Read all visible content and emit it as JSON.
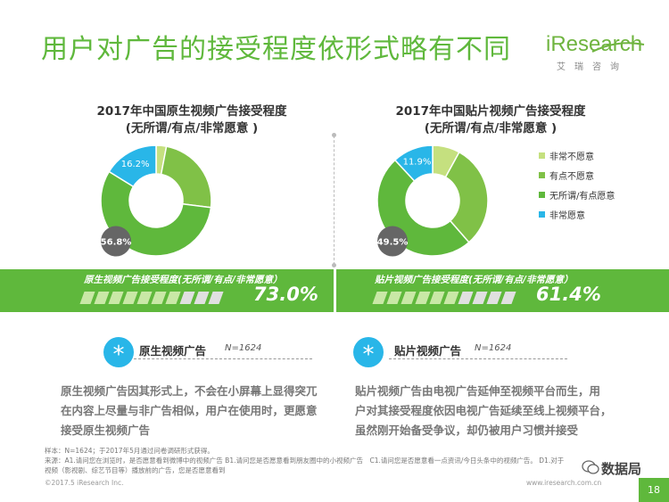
{
  "page": {
    "title": "用户对广告的接受程度依形式略有不同",
    "logo_text": "iResearch",
    "logo_sub": "艾瑞咨询",
    "page_number": "18"
  },
  "colors": {
    "accent_green": "#5fb83c",
    "star_blue": "#29b6e8"
  },
  "chart_data": [
    {
      "type": "pie",
      "donut": true,
      "title": "2017年中国原生视频广告接受程度",
      "subtitle": "(无所谓/有点/非常愿意 )",
      "categories": [
        "非常不愿意",
        "有点不愿意",
        "无所谓/有点愿意",
        "非常愿意"
      ],
      "values": [
        3.0,
        24.0,
        56.8,
        16.2
      ],
      "colors": [
        "#c5e07f",
        "#80c147",
        "#5fb83c",
        "#29b6e8"
      ],
      "data_labels": [
        "",
        "",
        "56.8%",
        "16.2%"
      ]
    },
    {
      "type": "pie",
      "donut": true,
      "title": "2017年中国贴片视频广告接受程度",
      "subtitle": "(无所谓/有点/非常愿意 )",
      "categories": [
        "非常不愿意",
        "有点不愿意",
        "无所谓/有点愿意",
        "非常愿意"
      ],
      "values": [
        8.0,
        30.6,
        49.5,
        11.9
      ],
      "colors": [
        "#c5e07f",
        "#80c147",
        "#5fb83c",
        "#29b6e8"
      ],
      "data_labels": [
        "",
        "",
        "49.5%",
        "11.9%"
      ],
      "legend_position": "right"
    }
  ],
  "band": {
    "left": {
      "label": "原生视频广告接受程度(无所谓/有点/非常愿意）",
      "value": "73.0%",
      "fraction": 0.73
    },
    "right": {
      "label": "贴片视频广告接受程度(无所谓/有点/非常愿意）",
      "value": "61.4%",
      "fraction": 0.614
    }
  },
  "cards": {
    "left": {
      "title": "原生视频广告",
      "n_label": "N=1624",
      "lines": [
        "原生视频广告因其形式上，不会在小屏幕上显得突兀",
        "在内容上尽量与非广告相似，用户在使用时，更愿意",
        "接受原生视频广告"
      ]
    },
    "right": {
      "title": "贴片视频广告",
      "n_label": "N=1624",
      "lines": [
        "贴片视频广告由电视广告延伸至视频平台而生，用",
        "户对其接受程度依因电视广告延续至线上视频平台，",
        "虽然刚开始备受争议，却仍被用户习惯并接受"
      ]
    }
  },
  "footer": {
    "note_line1": "样本：N=1624；于2017年5月通过问卷调研形式获得。",
    "note_line2": "来源：A1.请问您在浏览时，是否愿意看到微博中的视频广告 B1.请问您是否愿意看到朋友圈中的小视频广告　C1.请问您是否愿意看一点资讯/今日头条中的视频广告。 D1.对于",
    "note_line3": "视频（影视剧、综艺节目等）播放前的广告，您是否愿意看到",
    "copyright": "©2017.5 iResearch Inc.",
    "url": "www.iresearch.com.cn",
    "watermark": "数据局"
  }
}
